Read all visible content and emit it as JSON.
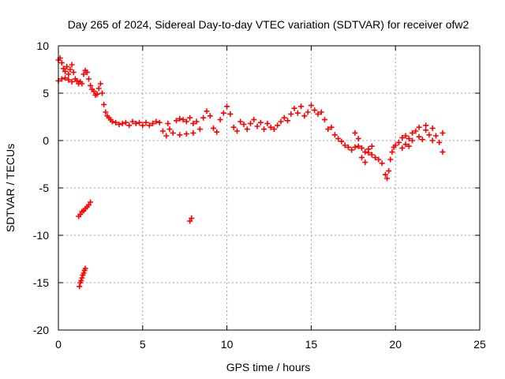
{
  "chart_data": {
    "type": "scatter",
    "title": "Day 265 of 2024, Sidereal Day-to-day VTEC variation (SDTVAR) for receiver ofw2",
    "xlabel": "GPS time / hours",
    "ylabel": "SDTVAR / TECUs",
    "xlim": [
      0,
      25
    ],
    "ylim": [
      -20,
      10
    ],
    "xticks": [
      0,
      5,
      10,
      15,
      20,
      25
    ],
    "yticks": [
      10,
      5,
      0,
      -5,
      -10,
      -15,
      -20
    ],
    "grid": true,
    "marker": "plus",
    "series": [
      {
        "name": "SDTVAR",
        "color": "#ff0000",
        "points": [
          [
            0.0,
            8.5
          ],
          [
            0.1,
            8.7
          ],
          [
            0.2,
            8.2
          ],
          [
            0.3,
            7.6
          ],
          [
            0.4,
            7.3
          ],
          [
            0.5,
            7.8
          ],
          [
            0.6,
            7.0
          ],
          [
            0.7,
            7.5
          ],
          [
            0.8,
            8.0
          ],
          [
            0.9,
            7.2
          ],
          [
            0.0,
            6.3
          ],
          [
            0.2,
            6.5
          ],
          [
            0.4,
            6.6
          ],
          [
            0.6,
            6.4
          ],
          [
            0.8,
            6.2
          ],
          [
            1.0,
            6.5
          ],
          [
            1.1,
            6.3
          ],
          [
            1.2,
            6.0
          ],
          [
            1.3,
            6.2
          ],
          [
            1.4,
            6.0
          ],
          [
            1.5,
            7.0
          ],
          [
            1.6,
            7.4
          ],
          [
            1.7,
            7.2
          ],
          [
            1.8,
            6.5
          ],
          [
            1.9,
            5.8
          ],
          [
            2.0,
            5.4
          ],
          [
            2.1,
            5.2
          ],
          [
            2.2,
            4.8
          ],
          [
            2.3,
            4.9
          ],
          [
            2.4,
            5.5
          ],
          [
            2.5,
            6.0
          ],
          [
            2.6,
            5.0
          ],
          [
            2.7,
            3.8
          ],
          [
            2.8,
            3.0
          ],
          [
            2.9,
            2.6
          ],
          [
            3.0,
            2.4
          ],
          [
            3.1,
            2.2
          ],
          [
            3.2,
            2.0
          ],
          [
            3.4,
            1.9
          ],
          [
            3.6,
            1.7
          ],
          [
            3.8,
            1.8
          ],
          [
            4.0,
            1.9
          ],
          [
            4.2,
            1.6
          ],
          [
            4.4,
            2.0
          ],
          [
            4.6,
            1.8
          ],
          [
            4.8,
            1.9
          ],
          [
            5.0,
            1.6
          ],
          [
            5.2,
            1.9
          ],
          [
            5.4,
            1.6
          ],
          [
            5.6,
            1.8
          ],
          [
            5.8,
            2.0
          ],
          [
            6.0,
            1.9
          ],
          [
            6.2,
            1.0
          ],
          [
            6.4,
            0.5
          ],
          [
            6.6,
            1.2
          ],
          [
            6.8,
            0.8
          ],
          [
            6.5,
            1.8
          ],
          [
            7.0,
            2.1
          ],
          [
            7.2,
            2.3
          ],
          [
            7.4,
            2.2
          ],
          [
            7.6,
            2.0
          ],
          [
            7.8,
            2.4
          ],
          [
            8.0,
            1.8
          ],
          [
            7.2,
            0.6
          ],
          [
            7.6,
            0.7
          ],
          [
            8.0,
            0.8
          ],
          [
            8.2,
            2.0
          ],
          [
            8.4,
            1.2
          ],
          [
            8.6,
            2.4
          ],
          [
            8.8,
            3.1
          ],
          [
            9.0,
            2.6
          ],
          [
            9.2,
            1.3
          ],
          [
            9.4,
            0.9
          ],
          [
            9.6,
            2.2
          ],
          [
            9.8,
            2.9
          ],
          [
            10.0,
            3.6
          ],
          [
            10.2,
            2.8
          ],
          [
            10.4,
            1.4
          ],
          [
            10.6,
            1.0
          ],
          [
            10.8,
            2.0
          ],
          [
            11.0,
            1.7
          ],
          [
            11.2,
            1.2
          ],
          [
            11.4,
            1.8
          ],
          [
            11.6,
            2.2
          ],
          [
            11.8,
            1.5
          ],
          [
            12.0,
            1.9
          ],
          [
            12.2,
            1.2
          ],
          [
            12.4,
            1.8
          ],
          [
            12.6,
            1.4
          ],
          [
            12.8,
            1.2
          ],
          [
            13.0,
            1.6
          ],
          [
            13.2,
            2.0
          ],
          [
            13.4,
            2.4
          ],
          [
            13.6,
            2.1
          ],
          [
            13.8,
            2.8
          ],
          [
            14.0,
            3.4
          ],
          [
            14.2,
            2.9
          ],
          [
            14.4,
            3.6
          ],
          [
            14.6,
            2.6
          ],
          [
            14.8,
            3.0
          ],
          [
            15.0,
            3.7
          ],
          [
            15.2,
            3.2
          ],
          [
            15.4,
            2.8
          ],
          [
            15.6,
            3.0
          ],
          [
            15.8,
            2.2
          ],
          [
            16.0,
            1.2
          ],
          [
            16.2,
            1.4
          ],
          [
            16.4,
            0.6
          ],
          [
            16.6,
            0.2
          ],
          [
            16.8,
            -0.1
          ],
          [
            17.0,
            -0.5
          ],
          [
            17.2,
            -0.7
          ],
          [
            17.4,
            -1.0
          ],
          [
            17.6,
            -0.7
          ],
          [
            17.8,
            -0.6
          ],
          [
            18.0,
            -0.8
          ],
          [
            18.2,
            -1.2
          ],
          [
            18.4,
            -0.9
          ],
          [
            18.6,
            -1.5
          ],
          [
            18.8,
            -1.8
          ],
          [
            19.0,
            -2.0
          ],
          [
            17.6,
            0.8
          ],
          [
            17.8,
            0.2
          ],
          [
            18.0,
            -1.8
          ],
          [
            18.2,
            -2.3
          ],
          [
            18.4,
            -1.3
          ],
          [
            18.6,
            -0.6
          ],
          [
            19.2,
            -2.4
          ],
          [
            19.4,
            -3.6
          ],
          [
            19.5,
            -4.0
          ],
          [
            19.6,
            -3.2
          ],
          [
            19.7,
            -2.0
          ],
          [
            19.8,
            -1.2
          ],
          [
            19.9,
            -0.7
          ],
          [
            20.0,
            -0.5
          ],
          [
            20.2,
            -0.2
          ],
          [
            20.4,
            0.3
          ],
          [
            20.6,
            0.5
          ],
          [
            20.8,
            0.2
          ],
          [
            21.0,
            0.8
          ],
          [
            21.2,
            1.0
          ],
          [
            21.4,
            0.4
          ],
          [
            21.6,
            0.1
          ],
          [
            20.4,
            -0.8
          ],
          [
            20.6,
            -0.4
          ],
          [
            20.8,
            -0.6
          ],
          [
            21.0,
            0.0
          ],
          [
            21.4,
            1.4
          ],
          [
            21.8,
            1.1
          ],
          [
            22.0,
            0.6
          ],
          [
            22.2,
            0.0
          ],
          [
            22.4,
            0.5
          ],
          [
            22.6,
            -0.2
          ],
          [
            22.8,
            0.8
          ],
          [
            22.8,
            -1.2
          ],
          [
            22.2,
            1.3
          ],
          [
            21.8,
            1.6
          ],
          [
            1.2,
            -8.0
          ],
          [
            1.3,
            -7.8
          ],
          [
            1.4,
            -7.5
          ],
          [
            1.5,
            -7.4
          ],
          [
            1.6,
            -7.2
          ],
          [
            1.7,
            -7.0
          ],
          [
            1.8,
            -6.8
          ],
          [
            1.9,
            -6.5
          ],
          [
            7.8,
            -8.5
          ],
          [
            7.9,
            -8.2
          ],
          [
            1.25,
            -15.4
          ],
          [
            1.3,
            -15.0
          ],
          [
            1.35,
            -14.8
          ],
          [
            1.4,
            -14.5
          ],
          [
            1.45,
            -14.2
          ],
          [
            1.5,
            -14.0
          ],
          [
            1.55,
            -13.7
          ],
          [
            1.6,
            -13.5
          ]
        ]
      }
    ]
  }
}
